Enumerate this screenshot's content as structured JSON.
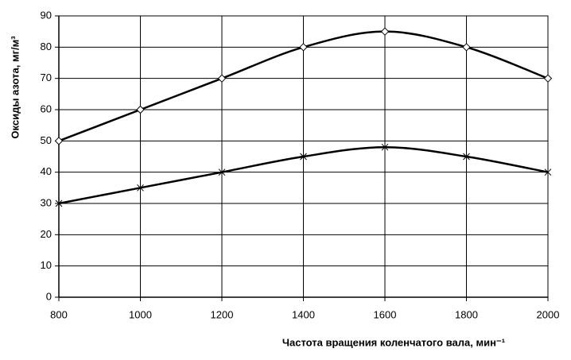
{
  "chart_data": {
    "type": "line",
    "xlabel": "Частота вращения коленчатого вала, мин⁻¹",
    "ylabel": "Оксиды азота, мг/м³",
    "x": [
      800,
      1000,
      1200,
      1400,
      1600,
      1800,
      2000
    ],
    "series": [
      {
        "color": "#000000",
        "marker": "diamond",
        "values": [
          50,
          60,
          70,
          80,
          85,
          80,
          70
        ]
      },
      {
        "color": "#000000",
        "marker": "x",
        "values": [
          30,
          35,
          40,
          45,
          48,
          45,
          40
        ]
      }
    ],
    "xlim": [
      800,
      2000
    ],
    "xticks": [
      800,
      1000,
      1200,
      1400,
      1600,
      1800,
      2000
    ],
    "ylim": [
      0,
      90
    ],
    "yticks": [
      0,
      10,
      20,
      30,
      40,
      50,
      60,
      70,
      80,
      90
    ],
    "grid": true,
    "smooth": true
  }
}
